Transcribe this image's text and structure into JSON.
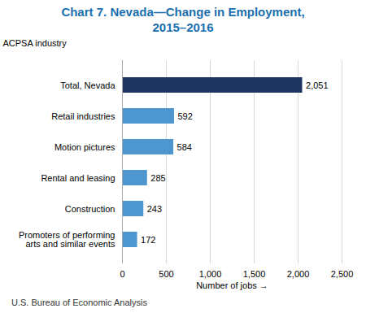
{
  "chart_data": {
    "type": "bar",
    "orientation": "horizontal",
    "title": "Chart 7. Nevada—Change in Employment,\n2015–2016",
    "xlabel": "Number of jobs",
    "ylabel": "ACPSA industry",
    "caption": "U.S. Bureau of Economic Analysis",
    "categories": [
      "Promoters of performing\narts and similar events",
      "Construction",
      "Rental and leasing",
      "Motion pictures",
      "Retail industries",
      "Total, Nevada"
    ],
    "values": [
      172,
      243,
      285,
      584,
      592,
      2051
    ],
    "value_labels": [
      "172",
      "243",
      "285",
      "584",
      "592",
      "2,051"
    ],
    "data_labels": true,
    "colors": [
      "#4e96d0",
      "#4e96d0",
      "#4e96d0",
      "#4e96d0",
      "#4e96d0",
      "#1c3561"
    ],
    "xlim": [
      0,
      2500
    ],
    "xticks": [
      0,
      500,
      {
        "value": 1000,
        "label": "1,000"
      },
      {
        "value": 1500,
        "label": "1,500"
      },
      {
        "value": 2000,
        "label": "2,000"
      },
      {
        "value": 2500,
        "label": "2,500"
      }
    ],
    "grid": true
  }
}
